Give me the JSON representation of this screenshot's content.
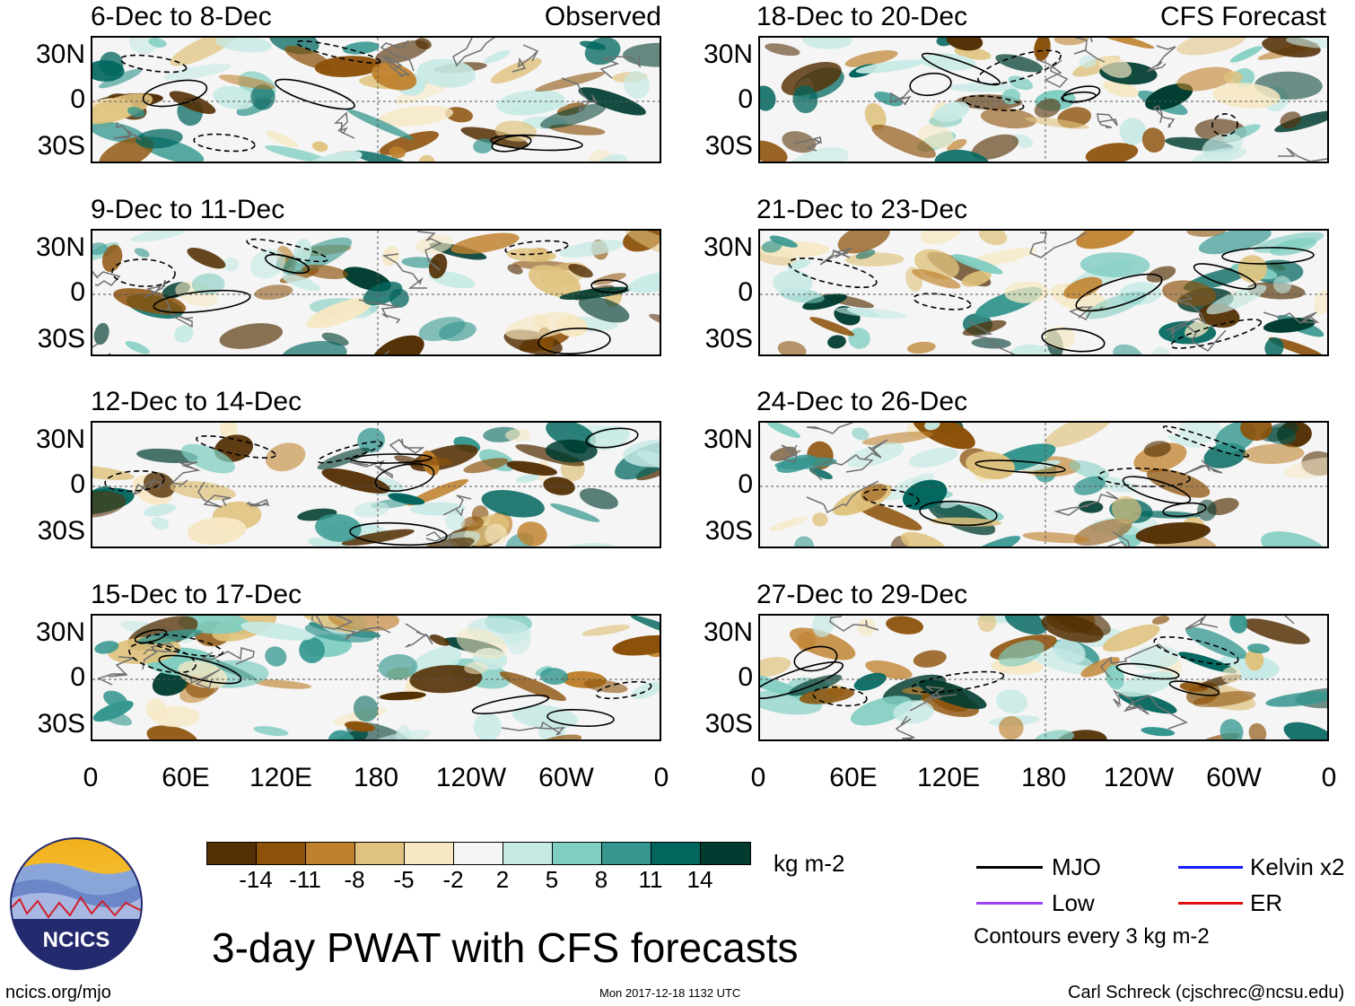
{
  "panels_left": [
    {
      "title": "6-Dec to 8-Dec",
      "label": "Observed"
    },
    {
      "title": "9-Dec to 11-Dec",
      "label": ""
    },
    {
      "title": "12-Dec to 14-Dec",
      "label": ""
    },
    {
      "title": "15-Dec to 17-Dec",
      "label": ""
    }
  ],
  "panels_right": [
    {
      "title": "18-Dec to 20-Dec",
      "label": "CFS Forecast"
    },
    {
      "title": "21-Dec to 23-Dec",
      "label": ""
    },
    {
      "title": "24-Dec to 26-Dec",
      "label": ""
    },
    {
      "title": "27-Dec to 29-Dec",
      "label": ""
    }
  ],
  "lat_ticks": [
    "30N",
    "0",
    "30S"
  ],
  "lon_ticks": [
    "0",
    "60E",
    "120E",
    "180",
    "120W",
    "60W",
    "0"
  ],
  "colorbar": {
    "colors": [
      "#543005",
      "#8c510a",
      "#bf812d",
      "#dfc27d",
      "#f6e8c3",
      "#f5f5f5",
      "#c7eae5",
      "#80cdc1",
      "#35978f",
      "#01665e",
      "#003c30"
    ],
    "labels": [
      "-14",
      "-11",
      "-8",
      "-5",
      "-2",
      "2",
      "5",
      "8",
      "11",
      "14"
    ],
    "units": "kg m-2"
  },
  "legend": {
    "mjo": {
      "label": "MJO",
      "color": "#000000"
    },
    "kelvin": {
      "label": "Kelvin x2",
      "color": "#1a1aff"
    },
    "low": {
      "label": "Low",
      "color": "#a040ff"
    },
    "er": {
      "label": "ER",
      "color": "#e01010"
    },
    "note": "Contours every 3 kg m-2"
  },
  "main_title": "3-day PWAT with CFS forecasts",
  "logo": {
    "text": "NCICS"
  },
  "footer": {
    "left": "ncics.org/mjo",
    "center": "Mon 2017-12-18 1132 UTC",
    "right": "Carl Schreck (cjschrec@ncsu.edu)"
  }
}
